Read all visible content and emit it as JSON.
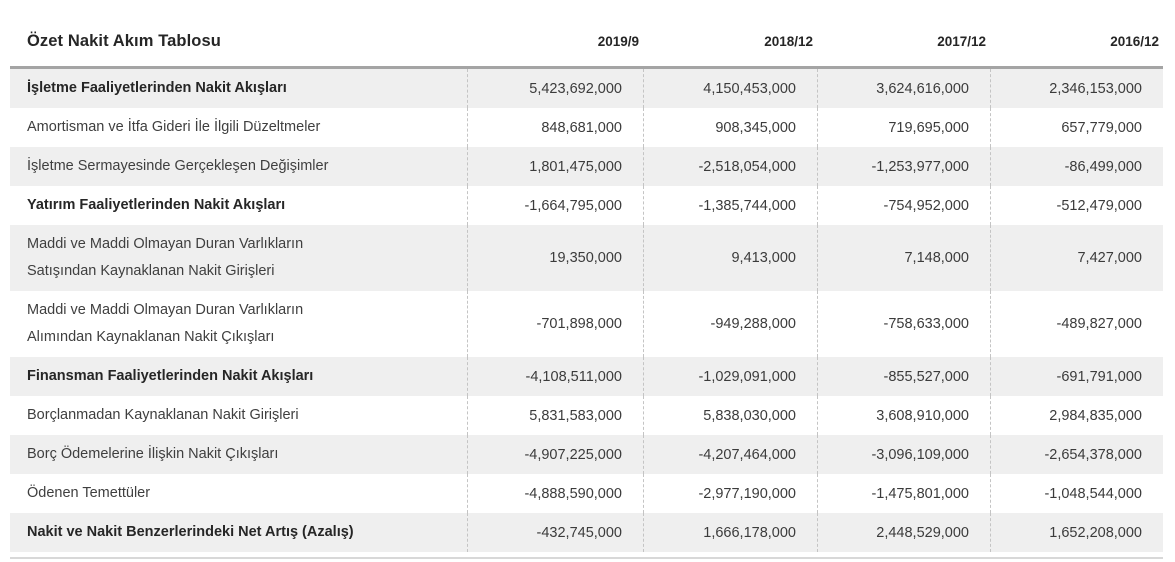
{
  "chart_data": {
    "type": "table",
    "title": "Özet Nakit Akım Tablosu",
    "columns": [
      "2019/9",
      "2018/12",
      "2017/12",
      "2016/12"
    ],
    "layout": {
      "striped": true,
      "values_alignment": "right",
      "bold_section_rows": [
        0,
        3,
        6,
        10
      ]
    },
    "rows": [
      {
        "label": "İşletme Faaliyetlerinden Nakit Akışları",
        "bold": true,
        "values": [
          "5,423,692,000",
          "4,150,453,000",
          "3,624,616,000",
          "2,346,153,000"
        ]
      },
      {
        "label": "Amortisman ve İtfa Gideri İle İlgili Düzeltmeler",
        "bold": false,
        "values": [
          "848,681,000",
          "908,345,000",
          "719,695,000",
          "657,779,000"
        ]
      },
      {
        "label": "İşletme Sermayesinde Gerçekleşen Değişimler",
        "bold": false,
        "values": [
          "1,801,475,000",
          "-2,518,054,000",
          "-1,253,977,000",
          "-86,499,000"
        ]
      },
      {
        "label": "Yatırım Faaliyetlerinden Nakit Akışları",
        "bold": true,
        "values": [
          "-1,664,795,000",
          "-1,385,744,000",
          "-754,952,000",
          "-512,479,000"
        ]
      },
      {
        "label": "Maddi ve Maddi Olmayan Duran Varlıkların\nSatışından Kaynaklanan Nakit Girişleri",
        "bold": false,
        "values": [
          "19,350,000",
          "9,413,000",
          "7,148,000",
          "7,427,000"
        ]
      },
      {
        "label": "Maddi ve Maddi Olmayan Duran Varlıkların\nAlımından Kaynaklanan Nakit Çıkışları",
        "bold": false,
        "values": [
          "-701,898,000",
          "-949,288,000",
          "-758,633,000",
          "-489,827,000"
        ]
      },
      {
        "label": "Finansman Faaliyetlerinden Nakit Akışları",
        "bold": true,
        "values": [
          "-4,108,511,000",
          "-1,029,091,000",
          "-855,527,000",
          "-691,791,000"
        ]
      },
      {
        "label": "Borçlanmadan Kaynaklanan Nakit Girişleri",
        "bold": false,
        "values": [
          "5,831,583,000",
          "5,838,030,000",
          "3,608,910,000",
          "2,984,835,000"
        ]
      },
      {
        "label": "Borç Ödemelerine İlişkin Nakit Çıkışları",
        "bold": false,
        "values": [
          "-4,907,225,000",
          "-4,207,464,000",
          "-3,096,109,000",
          "-2,654,378,000"
        ]
      },
      {
        "label": "Ödenen Temettüler",
        "bold": false,
        "values": [
          "-4,888,590,000",
          "-2,977,190,000",
          "-1,475,801,000",
          "-1,048,544,000"
        ]
      },
      {
        "label": "Nakit ve Nakit Benzerlerindeki Net Artış (Azalış)",
        "bold": true,
        "values": [
          "-432,745,000",
          "1,666,178,000",
          "2,448,529,000",
          "1,652,208,000"
        ]
      }
    ]
  },
  "colors": {
    "stripe": "#efefef",
    "header_rule": "#a4a4a4",
    "bottom_rule": "#d8d8d8",
    "column_dash": "#c4c4c4",
    "text": "#3b3b3b",
    "bold_text": "#262626"
  }
}
